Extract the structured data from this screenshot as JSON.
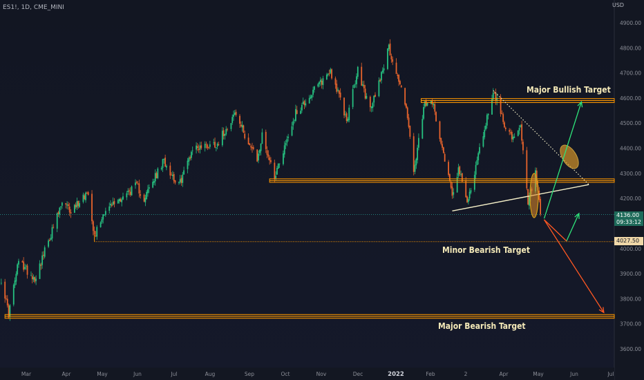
{
  "header": {
    "symbol": "ES1!, 1D, CME_MINI",
    "currency": "USD"
  },
  "price_tags": {
    "last_price": "4136.00",
    "countdown": "09:33:12",
    "level": "4027.50"
  },
  "annotations": {
    "bullish": "Major Bullish Target",
    "minor_bear": "Minor Bearish Target",
    "major_bear": "Major Bearish Target"
  },
  "colors": {
    "background": "#131722",
    "up_candle": "#26c281",
    "down_candle": "#e8642c",
    "zone": "#ff9800",
    "arrow_up": "#2ee47a",
    "arrow_down": "#ff5722",
    "trendline": "#f5f0c8"
  },
  "chart_data": {
    "type": "candlestick",
    "symbol": "ES1!",
    "timeframe": "1D",
    "y_axis": {
      "ticks": [
        3600,
        3700,
        3800,
        3900,
        4000,
        4100,
        4200,
        4300,
        4400,
        4500,
        4600,
        4700,
        4800,
        4900
      ],
      "tick_labels": [
        "3600.00",
        "3700.00",
        "3800.00",
        "3900.00",
        "4000.00",
        "4100.00",
        "4200.00",
        "4300.00",
        "4400.00",
        "4500.00",
        "4600.00",
        "4700.00",
        "4800.00",
        "4900.00"
      ],
      "range": [
        3550,
        4960
      ]
    },
    "x_axis": {
      "labels": [
        "Mar",
        "Apr",
        "May",
        "Jun",
        "Jul",
        "Aug",
        "Sep",
        "Oct",
        "Nov",
        "Dec",
        "2022",
        "Feb",
        "2",
        "Apr",
        "May",
        "Jun",
        "Jul"
      ]
    },
    "waypoints": [
      [
        "2021-02-26",
        3880
      ],
      [
        "2021-03-04",
        3740
      ],
      [
        "2021-03-12",
        3950
      ],
      [
        "2021-03-25",
        3880
      ],
      [
        "2021-04-16",
        4180
      ],
      [
        "2021-04-23",
        4150
      ],
      [
        "2021-05-07",
        4230
      ],
      [
        "2021-05-12",
        4050
      ],
      [
        "2021-05-20",
        4150
      ],
      [
        "2021-06-15",
        4250
      ],
      [
        "2021-06-21",
        4200
      ],
      [
        "2021-07-07",
        4350
      ],
      [
        "2021-07-19",
        4250
      ],
      [
        "2021-07-30",
        4400
      ],
      [
        "2021-08-19",
        4420
      ],
      [
        "2021-09-02",
        4540
      ],
      [
        "2021-09-20",
        4350
      ],
      [
        "2021-09-24",
        4450
      ],
      [
        "2021-10-04",
        4290
      ],
      [
        "2021-10-21",
        4540
      ],
      [
        "2021-11-18",
        4710
      ],
      [
        "2021-11-26",
        4590
      ],
      [
        "2021-12-01",
        4510
      ],
      [
        "2021-12-10",
        4710
      ],
      [
        "2021-12-20",
        4550
      ],
      [
        "2022-01-04",
        4800
      ],
      [
        "2022-01-18",
        4570
      ],
      [
        "2022-01-24",
        4300
      ],
      [
        "2022-02-02",
        4580
      ],
      [
        "2022-02-09",
        4570
      ],
      [
        "2022-02-24",
        4220
      ],
      [
        "2022-03-01",
        4320
      ],
      [
        "2022-03-08",
        4180
      ],
      [
        "2022-03-16",
        4350
      ],
      [
        "2022-03-29",
        4630
      ],
      [
        "2022-04-07",
        4500
      ],
      [
        "2022-04-14",
        4430
      ],
      [
        "2022-04-20",
        4480
      ],
      [
        "2022-04-26",
        4180
      ],
      [
        "2022-05-02",
        4300
      ],
      [
        "2022-05-06",
        4136
      ]
    ],
    "last_price": 4136.0,
    "price_line": 4136,
    "zones": [
      {
        "label": "resistance",
        "from": "2022-01-30",
        "to": "2022-07-30",
        "y1": 4582,
        "y2": 4598
      },
      {
        "label": "support",
        "from": "2021-09-30",
        "to": "2022-07-30",
        "y1": 4264,
        "y2": 4278
      },
      {
        "label": "major bearish target",
        "from": "2021-03-01",
        "to": "2022-07-30",
        "y1": 3722,
        "y2": 3737
      }
    ],
    "levels": [
      {
        "value": 4027.5,
        "from": "2021-05-12",
        "to": "2022-07-30",
        "style": "dotted"
      }
    ],
    "trendlines": [
      {
        "from": [
          "2022-02-24",
          4150
        ],
        "to": [
          "2022-06-14",
          4255
        ],
        "style": "solid"
      },
      {
        "from": [
          "2022-03-29",
          4630
        ],
        "to": [
          "2022-06-14",
          4255
        ],
        "style": "dotted"
      }
    ],
    "arrows": [
      {
        "from": [
          "2022-05-09",
          4120
        ],
        "to": [
          "2022-06-08",
          4585
        ],
        "direction": "up"
      },
      {
        "from": [
          "2022-05-27",
          4030
        ],
        "to": [
          "2022-06-06",
          4140
        ],
        "direction": "up"
      },
      {
        "from": [
          "2022-05-09",
          4115
        ],
        "to": [
          "2022-06-26",
          3745
        ],
        "direction": "down"
      }
    ]
  }
}
